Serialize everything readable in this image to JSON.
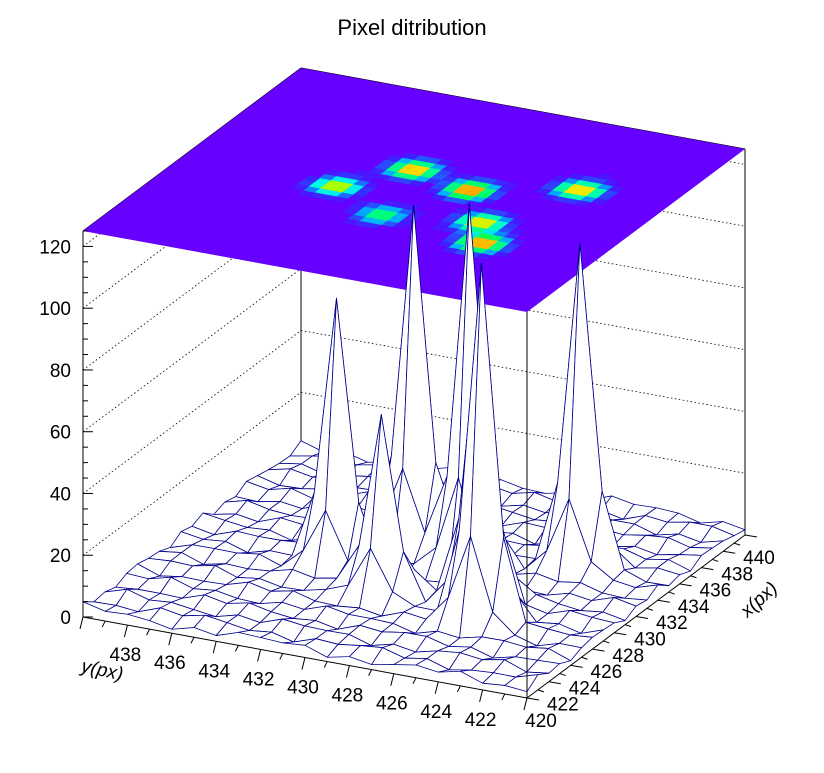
{
  "chart_data": {
    "type": "surface3d",
    "title": "Pixel ditribution",
    "xlabel": "x(px)",
    "ylabel": "y(px)",
    "zlabel": "",
    "xlim": [
      420,
      440
    ],
    "ylim": [
      420,
      440
    ],
    "zlim": [
      0,
      125
    ],
    "x_ticks": [
      420,
      422,
      424,
      426,
      428,
      430,
      432,
      434,
      436,
      438,
      440
    ],
    "y_ticks": [
      420,
      422,
      424,
      426,
      428,
      430,
      432,
      434,
      436,
      438
    ],
    "z_ticks": [
      0,
      20,
      40,
      60,
      80,
      100,
      120
    ],
    "grid": true,
    "top_projection": "color-contour",
    "mesh_color": "#00008b",
    "peaks": [
      {
        "x": 431,
        "y": 428,
        "z": 118
      },
      {
        "x": 426,
        "y": 425,
        "z": 115
      },
      {
        "x": 432,
        "y": 431,
        "z": 112
      },
      {
        "x": 433,
        "y": 424,
        "z": 103
      },
      {
        "x": 428,
        "y": 426,
        "z": 98
      },
      {
        "x": 429,
        "y": 433,
        "z": 84
      },
      {
        "x": 427,
        "y": 430,
        "z": 58
      }
    ],
    "background_level": 5
  }
}
